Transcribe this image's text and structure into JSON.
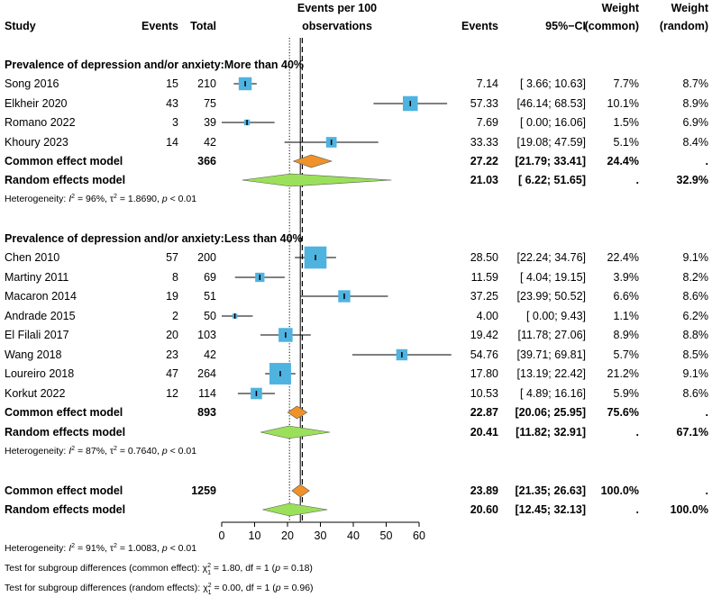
{
  "chart_data": {
    "type": "forest",
    "header": {
      "study": "Study",
      "events": "Events",
      "total": "Total",
      "plot_title_1": "Events per 100",
      "plot_title_2": "observations",
      "events_col": "Events",
      "ci_col": "95%−CI",
      "weight_common_1": "Weight",
      "weight_common_2": "(common)",
      "weight_random_1": "Weight",
      "weight_random_2": "(random)"
    },
    "x_axis": {
      "ticks": [
        0,
        10,
        20,
        30,
        40,
        50,
        60
      ],
      "xlim": [
        0,
        60
      ],
      "common_line": 23.89,
      "random_line": 20.6
    },
    "groups": [
      {
        "title": "Prevalence of depression and/or anxiety:More than 40%",
        "studies": [
          {
            "name": "Song 2016",
            "events": "15",
            "total": "210",
            "est": 7.14,
            "lo": 3.66,
            "hi": 10.63,
            "est_txt": "7.14",
            "ci_txt": "[ 3.66; 10.63]",
            "wc": "7.7%",
            "wr": "8.7%"
          },
          {
            "name": "Elkheir 2020",
            "events": "43",
            "total": "75",
            "est": 57.33,
            "lo": 46.14,
            "hi": 68.53,
            "est_txt": "57.33",
            "ci_txt": "[46.14; 68.53]",
            "wc": "10.1%",
            "wr": "8.9%"
          },
          {
            "name": "Romano 2022",
            "events": "3",
            "total": "39",
            "est": 7.69,
            "lo": 0.0,
            "hi": 16.06,
            "est_txt": "7.69",
            "ci_txt": "[ 0.00; 16.06]",
            "wc": "1.5%",
            "wr": "6.9%"
          },
          {
            "name": "Khoury 2023",
            "events": "14",
            "total": "42",
            "est": 33.33,
            "lo": 19.08,
            "hi": 47.59,
            "est_txt": "33.33",
            "ci_txt": "[19.08; 47.59]",
            "wc": "5.1%",
            "wr": "8.4%"
          }
        ],
        "common": {
          "name": "Common effect model",
          "total": "366",
          "est": 27.22,
          "lo": 21.79,
          "hi": 33.41,
          "est_txt": "27.22",
          "ci_txt": "[21.79; 33.41]",
          "wc": "24.4%",
          "wr": "."
        },
        "random": {
          "name": "Random effects model",
          "est": 21.03,
          "lo": 6.22,
          "hi": 51.65,
          "est_txt": "21.03",
          "ci_txt": "[ 6.22; 51.65]",
          "wc": ".",
          "wr": "32.9%"
        },
        "het_prefix": "Heterogeneity: ",
        "het_i2": "I",
        "het_i2_rest": " = 96%, ",
        "het_tau": "τ",
        "het_tau_rest": " = 1.8690, ",
        "het_p": "p",
        "het_p_rest": " < 0.01"
      },
      {
        "title": "Prevalence of depression and/or anxiety:Less than 40%",
        "studies": [
          {
            "name": "Chen 2010",
            "events": "57",
            "total": "200",
            "est": 28.5,
            "lo": 22.24,
            "hi": 34.76,
            "est_txt": "28.50",
            "ci_txt": "[22.24; 34.76]",
            "wc": "22.4%",
            "wr": "9.1%"
          },
          {
            "name": "Martiny 2011",
            "events": "8",
            "total": "69",
            "est": 11.59,
            "lo": 4.04,
            "hi": 19.15,
            "est_txt": "11.59",
            "ci_txt": "[ 4.04; 19.15]",
            "wc": "3.9%",
            "wr": "8.2%"
          },
          {
            "name": "Macaron 2014",
            "events": "19",
            "total": "51",
            "est": 37.25,
            "lo": 23.99,
            "hi": 50.52,
            "est_txt": "37.25",
            "ci_txt": "[23.99; 50.52]",
            "wc": "6.6%",
            "wr": "8.6%"
          },
          {
            "name": "Andrade 2015",
            "events": "2",
            "total": "50",
            "est": 4.0,
            "lo": 0.0,
            "hi": 9.43,
            "est_txt": "4.00",
            "ci_txt": "[ 0.00; 9.43]",
            "wc": "1.1%",
            "wr": "6.2%"
          },
          {
            "name": "El Filali 2017",
            "events": "20",
            "total": "103",
            "est": 19.42,
            "lo": 11.78,
            "hi": 27.06,
            "est_txt": "19.42",
            "ci_txt": "[11.78; 27.06]",
            "wc": "8.9%",
            "wr": "8.8%"
          },
          {
            "name": "Wang 2018",
            "events": "23",
            "total": "42",
            "est": 54.76,
            "lo": 39.71,
            "hi": 69.81,
            "est_txt": "54.76",
            "ci_txt": "[39.71; 69.81]",
            "wc": "5.7%",
            "wr": "8.5%"
          },
          {
            "name": "Loureiro 2018",
            "events": "47",
            "total": "264",
            "est": 17.8,
            "lo": 13.19,
            "hi": 22.42,
            "est_txt": "17.80",
            "ci_txt": "[13.19; 22.42]",
            "wc": "21.2%",
            "wr": "9.1%"
          },
          {
            "name": "Korkut 2022",
            "events": "12",
            "total": "114",
            "est": 10.53,
            "lo": 4.89,
            "hi": 16.16,
            "est_txt": "10.53",
            "ci_txt": "[ 4.89; 16.16]",
            "wc": "5.9%",
            "wr": "8.6%"
          }
        ],
        "common": {
          "name": "Common effect model",
          "total": "893",
          "est": 22.87,
          "lo": 20.06,
          "hi": 25.95,
          "est_txt": "22.87",
          "ci_txt": "[20.06; 25.95]",
          "wc": "75.6%",
          "wr": "."
        },
        "random": {
          "name": "Random effects model",
          "est": 20.41,
          "lo": 11.82,
          "hi": 32.91,
          "est_txt": "20.41",
          "ci_txt": "[11.82; 32.91]",
          "wc": ".",
          "wr": "67.1%"
        },
        "het_prefix": "Heterogeneity: ",
        "het_i2": "I",
        "het_i2_rest": " = 87%, ",
        "het_tau": "τ",
        "het_tau_rest": " = 0.7640, ",
        "het_p": "p",
        "het_p_rest": " < 0.01"
      }
    ],
    "overall": {
      "common": {
        "name": "Common effect model",
        "total": "1259",
        "est": 23.89,
        "lo": 21.35,
        "hi": 26.63,
        "est_txt": "23.89",
        "ci_txt": "[21.35; 26.63]",
        "wc": "100.0%",
        "wr": "."
      },
      "random": {
        "name": "Random effects model",
        "est": 20.6,
        "lo": 12.45,
        "hi": 32.13,
        "est_txt": "20.60",
        "ci_txt": "[12.45; 32.13]",
        "wc": ".",
        "wr": "100.0%"
      },
      "het_prefix": "Heterogeneity: ",
      "het_i2": "I",
      "het_i2_rest": " = 91%, ",
      "het_tau": "τ",
      "het_tau_rest": " = 1.0083, ",
      "het_p": "p",
      "het_p_rest": " < 0.01",
      "subgroup_common_prefix": "Test for subgroup differences (common effect): ",
      "subgroup_common_chi": "χ",
      "subgroup_common_rest": " = 1.80, df = 1 (",
      "subgroup_common_p": "p",
      "subgroup_common_end": " = 0.18)",
      "subgroup_random_prefix": "Test for subgroup differences (random effects): ",
      "subgroup_random_chi": "χ",
      "subgroup_random_rest": " = 0.00, df = 1 (",
      "subgroup_random_p": "p",
      "subgroup_random_end": " = 0.96)",
      "sup2": "2",
      "sub1": "1"
    },
    "colors": {
      "square": "#4fb3e0",
      "common_diamond": "#f0922a",
      "random_diamond": "#9be05a",
      "line": "#000000"
    }
  }
}
